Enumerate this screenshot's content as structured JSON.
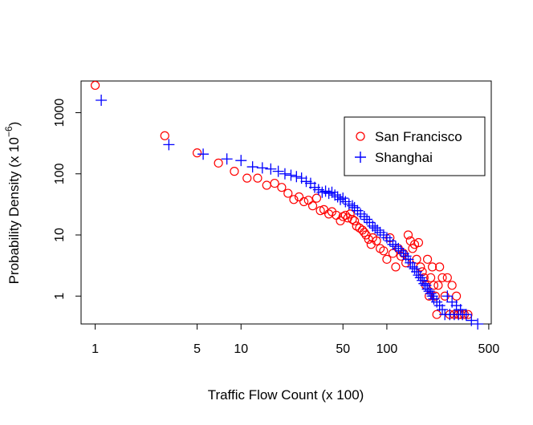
{
  "chart_data": {
    "type": "scatter",
    "title": "",
    "xlabel": "Traffic Flow Count (x 100)",
    "ylabel_text": "Probability Density (x 10",
    "ylabel_sup": "−6",
    "ylabel_close": ")",
    "x_scale": "log",
    "y_scale": "log",
    "xlim": [
      0.8,
      520
    ],
    "ylim": [
      0.35,
      3300
    ],
    "grid": false,
    "legend_position": "top-right",
    "x_ticks": [
      {
        "value": 1,
        "label": "1"
      },
      {
        "value": 5,
        "label": "5"
      },
      {
        "value": 10,
        "label": "10"
      },
      {
        "value": 50,
        "label": "50"
      },
      {
        "value": 100,
        "label": "100"
      },
      {
        "value": 500,
        "label": "500"
      }
    ],
    "y_ticks": [
      {
        "value": 1,
        "label": "1"
      },
      {
        "value": 10,
        "label": "10"
      },
      {
        "value": 100,
        "label": "100"
      },
      {
        "value": 1000,
        "label": "1000"
      }
    ],
    "series": [
      {
        "name": "San Francisco",
        "marker": "circle",
        "color": "#ff0000",
        "points": [
          [
            1,
            2800
          ],
          [
            3,
            420
          ],
          [
            5,
            220
          ],
          [
            7,
            150
          ],
          [
            9,
            110
          ],
          [
            11,
            85
          ],
          [
            13,
            85
          ],
          [
            15,
            65
          ],
          [
            17,
            70
          ],
          [
            19,
            60
          ],
          [
            21,
            48
          ],
          [
            23,
            38
          ],
          [
            25,
            42
          ],
          [
            27,
            35
          ],
          [
            29,
            37
          ],
          [
            31,
            30
          ],
          [
            33,
            40
          ],
          [
            35,
            25
          ],
          [
            37,
            26
          ],
          [
            40,
            22
          ],
          [
            42,
            24
          ],
          [
            45,
            21
          ],
          [
            48,
            17
          ],
          [
            50,
            20
          ],
          [
            52,
            21
          ],
          [
            54,
            19
          ],
          [
            56,
            22
          ],
          [
            58,
            18
          ],
          [
            60,
            17
          ],
          [
            62,
            14
          ],
          [
            65,
            13
          ],
          [
            68,
            12
          ],
          [
            70,
            11
          ],
          [
            72,
            10
          ],
          [
            75,
            8.5
          ],
          [
            78,
            7
          ],
          [
            80,
            9
          ],
          [
            85,
            8
          ],
          [
            90,
            6
          ],
          [
            95,
            5.5
          ],
          [
            100,
            4
          ],
          [
            105,
            9
          ],
          [
            110,
            5
          ],
          [
            115,
            3
          ],
          [
            120,
            6
          ],
          [
            125,
            4.5
          ],
          [
            130,
            5
          ],
          [
            135,
            3.5
          ],
          [
            140,
            10
          ],
          [
            145,
            8
          ],
          [
            150,
            6
          ],
          [
            155,
            7
          ],
          [
            160,
            4
          ],
          [
            165,
            7.5
          ],
          [
            170,
            3
          ],
          [
            175,
            2.5
          ],
          [
            180,
            2
          ],
          [
            185,
            1.5
          ],
          [
            190,
            4
          ],
          [
            195,
            1
          ],
          [
            200,
            2
          ],
          [
            205,
            3
          ],
          [
            210,
            1.5
          ],
          [
            215,
            1
          ],
          [
            220,
            0.5
          ],
          [
            225,
            1.5
          ],
          [
            230,
            3
          ],
          [
            240,
            2
          ],
          [
            250,
            1
          ],
          [
            260,
            2
          ],
          [
            270,
            0.5
          ],
          [
            280,
            1.5
          ],
          [
            290,
            0.5
          ],
          [
            300,
            1
          ],
          [
            310,
            0.5
          ],
          [
            320,
            0.5
          ],
          [
            340,
            0.5
          ],
          [
            360,
            0.5
          ]
        ]
      },
      {
        "name": "Shanghai",
        "marker": "plus",
        "color": "#0000ff",
        "points": [
          [
            1.1,
            1600
          ],
          [
            3.2,
            300
          ],
          [
            5.5,
            210
          ],
          [
            8,
            175
          ],
          [
            10,
            165
          ],
          [
            12,
            130
          ],
          [
            14,
            125
          ],
          [
            16,
            120
          ],
          [
            18,
            110
          ],
          [
            20,
            100
          ],
          [
            22,
            95
          ],
          [
            24,
            90
          ],
          [
            26,
            85
          ],
          [
            28,
            75
          ],
          [
            30,
            70
          ],
          [
            32,
            60
          ],
          [
            34,
            55
          ],
          [
            36,
            50
          ],
          [
            38,
            52
          ],
          [
            40,
            48
          ],
          [
            42,
            50
          ],
          [
            44,
            45
          ],
          [
            46,
            42
          ],
          [
            48,
            38
          ],
          [
            50,
            40
          ],
          [
            52,
            35
          ],
          [
            55,
            32
          ],
          [
            58,
            30
          ],
          [
            60,
            28
          ],
          [
            63,
            25
          ],
          [
            66,
            22
          ],
          [
            70,
            20
          ],
          [
            73,
            18
          ],
          [
            76,
            16
          ],
          [
            80,
            14
          ],
          [
            83,
            13
          ],
          [
            86,
            12
          ],
          [
            90,
            11
          ],
          [
            95,
            10
          ],
          [
            100,
            9
          ],
          [
            105,
            8
          ],
          [
            110,
            7
          ],
          [
            115,
            6.5
          ],
          [
            120,
            6
          ],
          [
            125,
            5.5
          ],
          [
            130,
            5
          ],
          [
            135,
            4.5
          ],
          [
            140,
            4
          ],
          [
            145,
            3.5
          ],
          [
            150,
            3
          ],
          [
            155,
            2.8
          ],
          [
            160,
            2.5
          ],
          [
            165,
            2.2
          ],
          [
            170,
            2
          ],
          [
            175,
            1.8
          ],
          [
            180,
            1.6
          ],
          [
            185,
            1.5
          ],
          [
            190,
            1.3
          ],
          [
            195,
            1.2
          ],
          [
            200,
            1.1
          ],
          [
            205,
            1
          ],
          [
            210,
            0.9
          ],
          [
            220,
            0.8
          ],
          [
            230,
            0.7
          ],
          [
            240,
            0.6
          ],
          [
            250,
            0.5
          ],
          [
            260,
            1
          ],
          [
            270,
            0.5
          ],
          [
            280,
            0.8
          ],
          [
            290,
            0.5
          ],
          [
            300,
            0.7
          ],
          [
            310,
            0.5
          ],
          [
            320,
            0.6
          ],
          [
            330,
            0.5
          ],
          [
            350,
            0.5
          ],
          [
            380,
            0.4
          ],
          [
            420,
            0.35
          ]
        ]
      }
    ]
  }
}
